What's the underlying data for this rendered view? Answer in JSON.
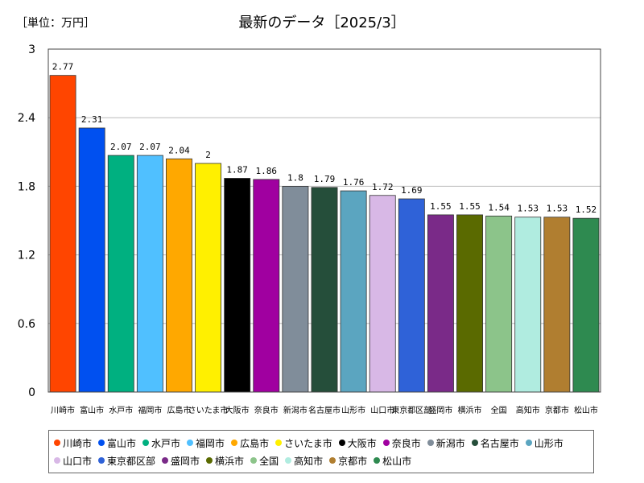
{
  "header": {
    "unit_label": "［単位：万円］",
    "title": "最新のデータ［2025/3］"
  },
  "chart_data": {
    "type": "bar",
    "title": "最新のデータ［2025/3］",
    "unit": "［単位：万円］",
    "ylim": [
      0,
      3
    ],
    "yticks": [
      "0",
      "0.6",
      "1.2",
      "1.8",
      "2.4",
      "3"
    ],
    "ytick_values": [
      0,
      0.6,
      1.2,
      1.8,
      2.4,
      3
    ],
    "grid": true,
    "legend_position": "bottom",
    "categories": [
      "川崎市",
      "富山市",
      "水戸市",
      "福岡市",
      "広島市",
      "さいたま市",
      "大阪市",
      "奈良市",
      "新潟市",
      "名古屋市",
      "山形市",
      "山口市",
      "東京都区部",
      "盛岡市",
      "横浜市",
      "全国",
      "高知市",
      "京都市",
      "松山市"
    ],
    "values": [
      2.77,
      2.31,
      2.07,
      2.07,
      2.04,
      2,
      1.87,
      1.86,
      1.8,
      1.79,
      1.76,
      1.72,
      1.69,
      1.55,
      1.55,
      1.54,
      1.53,
      1.53,
      1.52
    ],
    "value_labels": [
      "2.77",
      "2.31",
      "2.07",
      "2.07",
      "2.04",
      "2",
      "1.87",
      "1.86",
      "1.8",
      "1.79",
      "1.76",
      "1.72",
      "1.69",
      "1.55",
      "1.55",
      "1.54",
      "1.53",
      "1.53",
      "1.52"
    ],
    "colors": [
      "#ff4500",
      "#0050f0",
      "#00b080",
      "#50c0ff",
      "#ffa800",
      "#fff000",
      "#000000",
      "#a000a0",
      "#808d9a",
      "#254e3a",
      "#5ba5c0",
      "#d8b8e6",
      "#2f62d8",
      "#7a2a88",
      "#5a6a00",
      "#8cc48a",
      "#b0ece0",
      "#b07e30",
      "#2e8a50"
    ]
  }
}
